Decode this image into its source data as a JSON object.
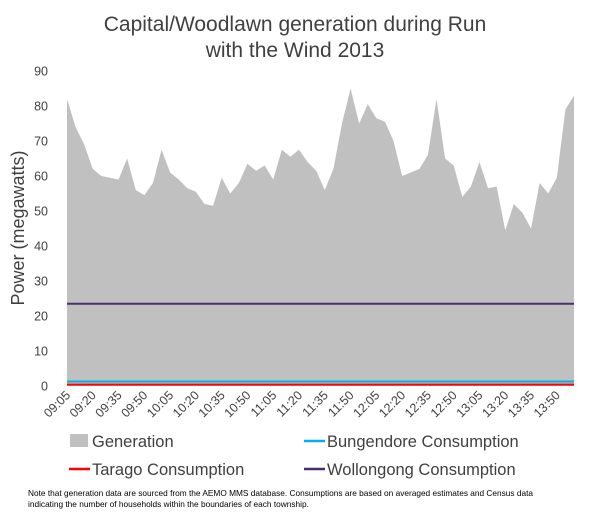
{
  "chart_data": {
    "type": "area",
    "title": [
      "Capital/Woodlawn generation during Run",
      "with the Wind 2013"
    ],
    "ylabel": "Power (megawatts)",
    "xlabel": "",
    "ylim": [
      0,
      90
    ],
    "yticks": [
      0,
      10,
      20,
      30,
      40,
      50,
      60,
      70,
      80,
      90
    ],
    "x": [
      "09:05",
      "09:10",
      "09:15",
      "09:20",
      "09:25",
      "09:30",
      "09:35",
      "09:40",
      "09:45",
      "09:50",
      "09:55",
      "10:00",
      "10:05",
      "10:10",
      "10:15",
      "10:20",
      "10:25",
      "10:30",
      "10:35",
      "10:40",
      "10:45",
      "10:50",
      "10:55",
      "11:00",
      "11:05",
      "11:10",
      "11:15",
      "11:20",
      "11:25",
      "11:30",
      "11:35",
      "11:40",
      "11:45",
      "11:50",
      "11:55",
      "12:00",
      "12:05",
      "12:10",
      "12:15",
      "12:20",
      "12:25",
      "12:30",
      "12:35",
      "12:40",
      "12:45",
      "12:50",
      "12:55",
      "13:00",
      "13:05",
      "13:10",
      "13:15",
      "13:20",
      "13:25",
      "13:30",
      "13:35",
      "13:40",
      "13:45",
      "13:50",
      "13:55",
      "14:00"
    ],
    "xtick_labels": [
      "09:05",
      "09:20",
      "09:35",
      "09:50",
      "10:05",
      "10:20",
      "10:35",
      "10:50",
      "11:05",
      "11:20",
      "11:35",
      "11:50",
      "12:05",
      "12:20",
      "12:35",
      "12:50",
      "13:05",
      "13:20",
      "13:35",
      "13:50"
    ],
    "series": [
      {
        "name": "Generation",
        "kind": "area",
        "color": "#c0c0c0",
        "values": [
          82,
          74,
          69,
          62,
          60,
          59.5,
          59,
          65,
          56,
          54.5,
          58,
          67.5,
          61,
          59,
          56.5,
          55.5,
          52,
          51.5,
          59.5,
          55,
          58,
          63.5,
          61.5,
          63,
          59,
          67.5,
          65.5,
          67.5,
          64,
          61.5,
          56,
          62,
          75,
          85,
          75,
          80.5,
          76.5,
          75.5,
          70,
          60,
          61,
          62,
          66,
          82,
          65,
          63,
          54,
          57,
          64,
          56.5,
          57,
          44.5,
          52,
          49.5,
          45,
          58,
          55,
          59.5,
          79,
          83
        ]
      },
      {
        "name": "Bungendore Consumption",
        "kind": "line",
        "color": "#00b0f0",
        "constant": 1.3
      },
      {
        "name": "Tarago Consumption",
        "kind": "line",
        "color": "#ff0000",
        "constant": 0.4
      },
      {
        "name": "Wollongong Consumption",
        "kind": "line",
        "color": "#4b2c6e",
        "constant": 23.5
      }
    ],
    "legend_position": "bottom",
    "grid": false
  },
  "legend": [
    {
      "label": "Generation",
      "color": "#c0c0c0",
      "marker": "box"
    },
    {
      "label": "Bungendore Consumption",
      "color": "#00b0f0",
      "marker": "line"
    },
    {
      "label": "Tarago Consumption",
      "color": "#ff0000",
      "marker": "line"
    },
    {
      "label": "Wollongong Consumption",
      "color": "#4b2c6e",
      "marker": "line"
    }
  ],
  "note": "Note that generation data are sourced from the AEMO MMS  database. Consumptions are based on averaged estimates and Census data indicating the number of households within the boundaries of each township."
}
